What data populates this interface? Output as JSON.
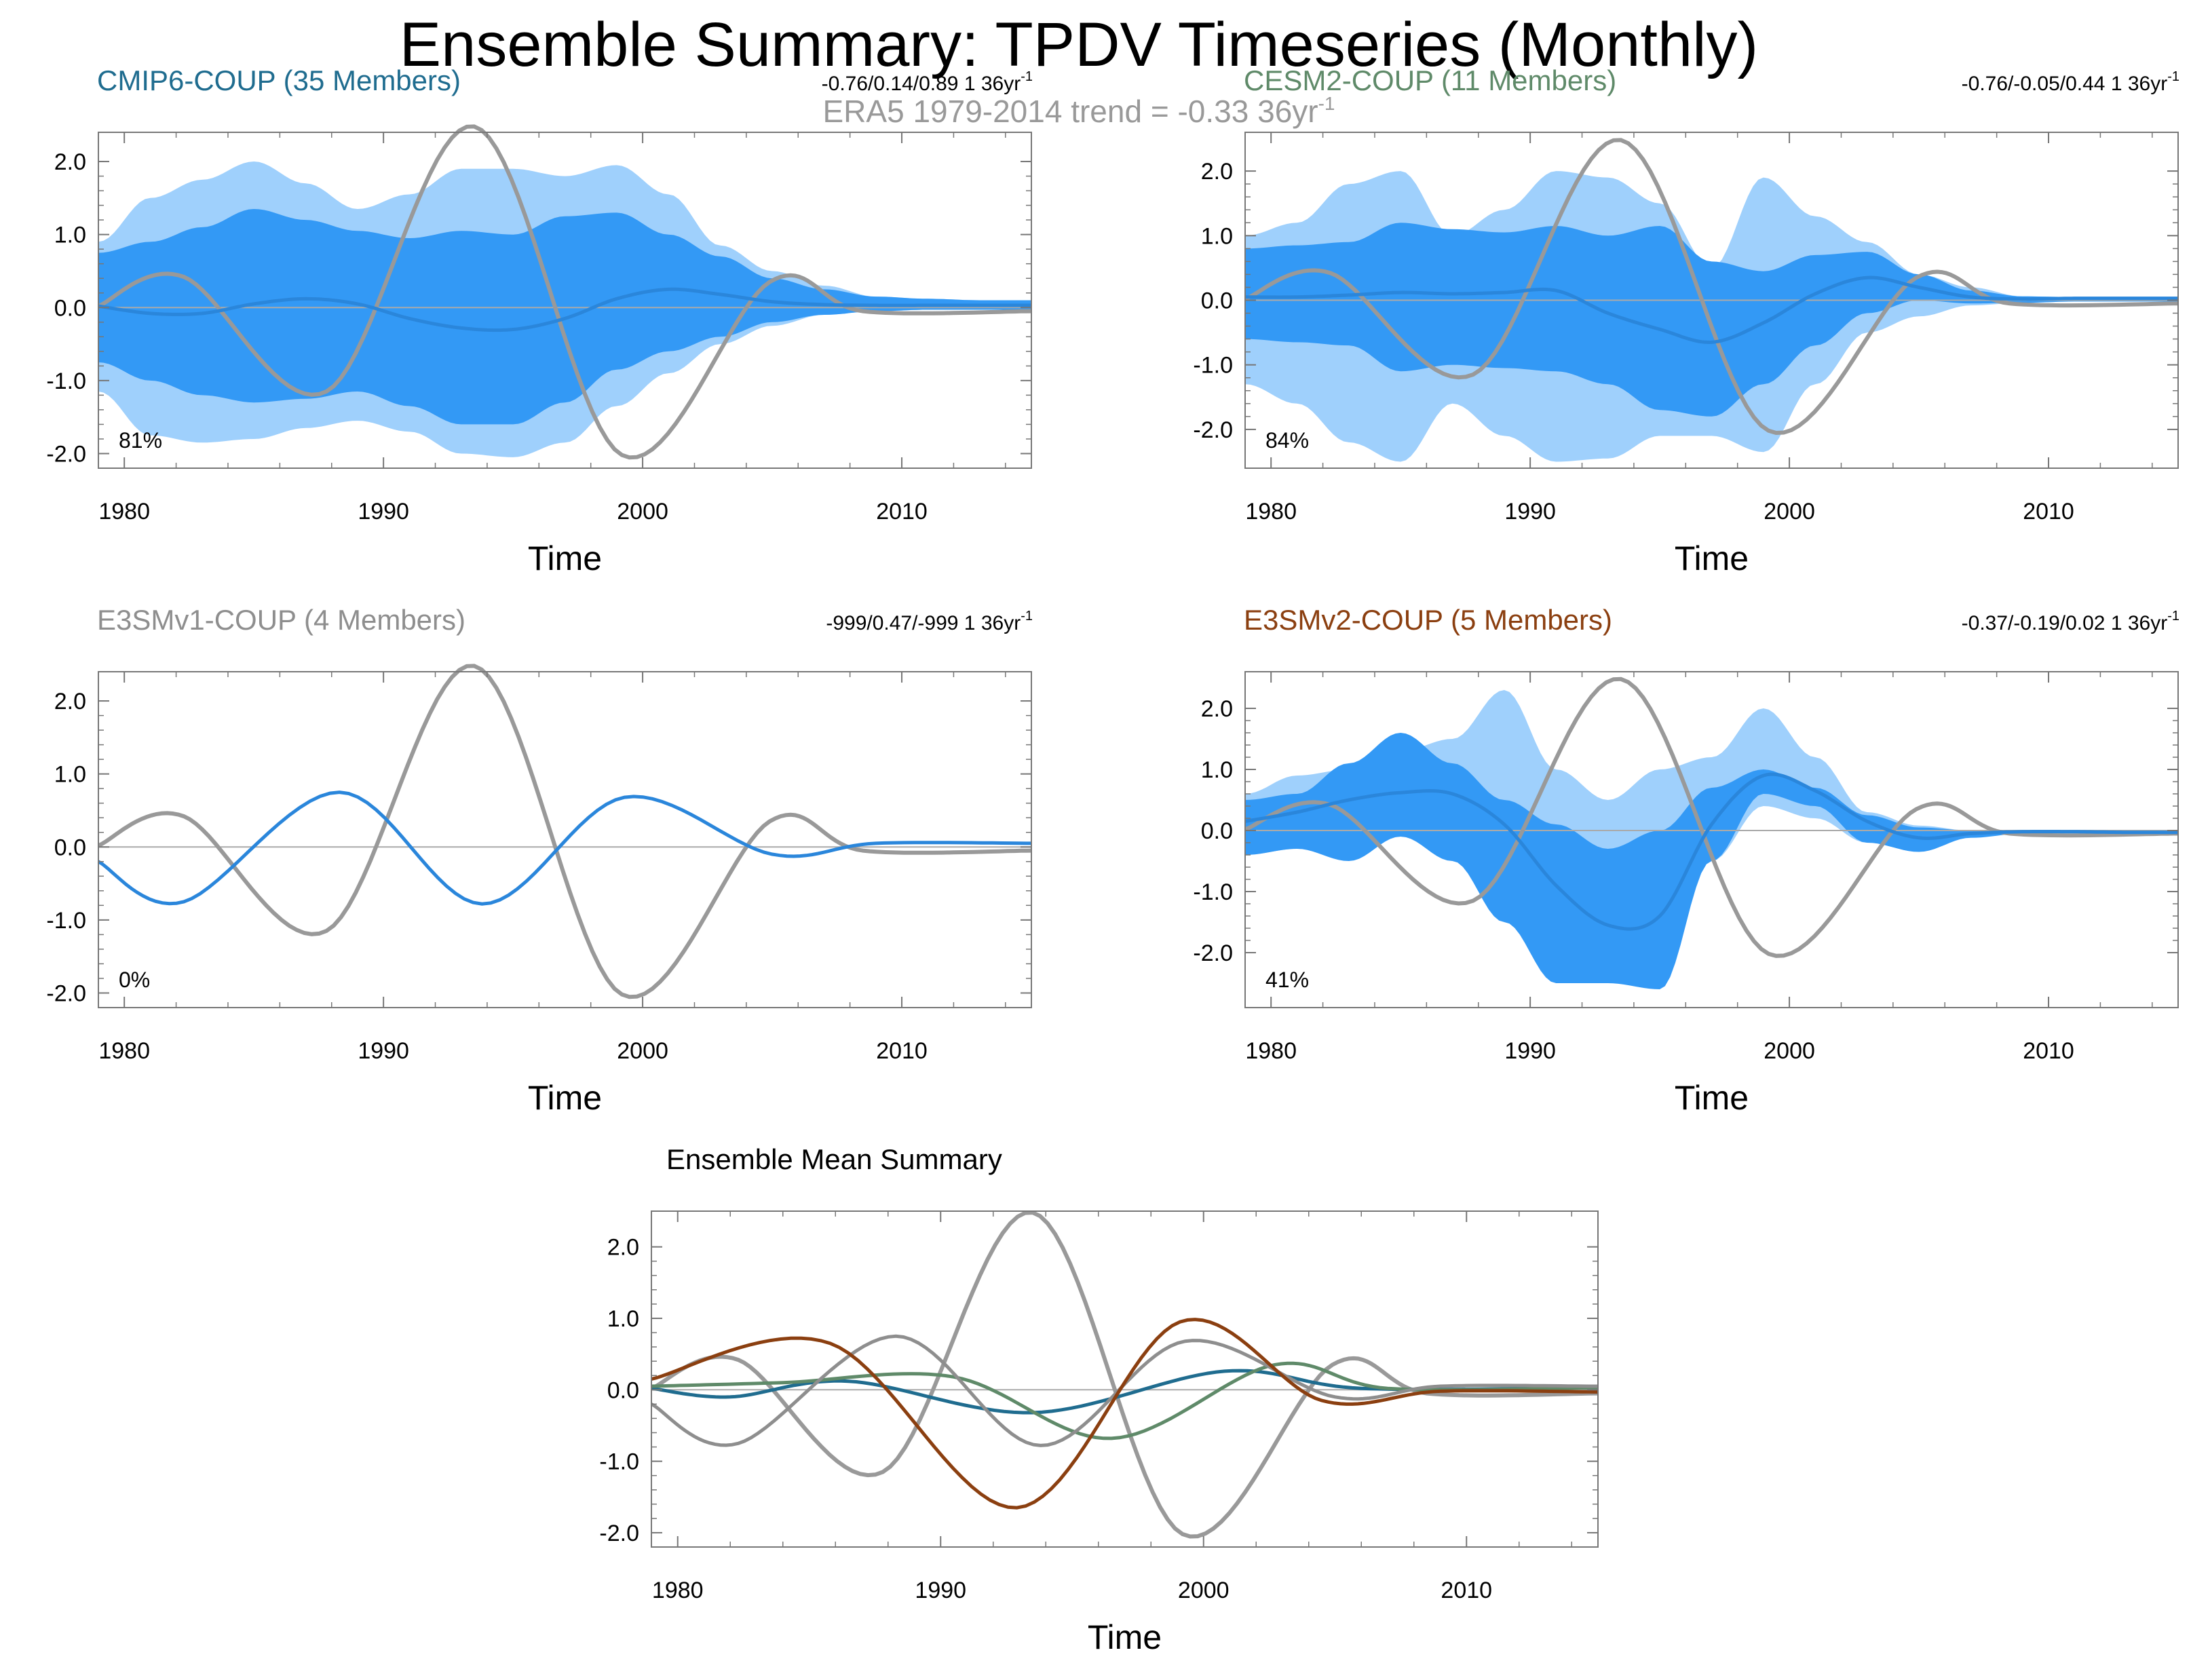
{
  "title": "Ensemble Summary: TPDV Timeseries (Monthly)",
  "era5_note": "ERA5 1979-2014 trend = -0.33 36yr",
  "era5_sup": "-1",
  "colors": {
    "band_outer": "#9fd0fc",
    "band_inner": "#3399f5",
    "member_mean": "#2a86db",
    "obs": "#999999",
    "zero_line": "#aaaaaa",
    "axis": "#777777",
    "cmip6": "#1f6c8f",
    "cesm2": "#5f8a69",
    "e3smv1": "#8e8e8e",
    "e3smv2": "#8b3f10"
  },
  "chart_data": [
    {
      "id": "cmip6",
      "type": "area",
      "title": "CMIP6-COUP (35 Members)",
      "trend_text": "-0.76/0.14/0.89 1 36yr",
      "trend_sup": "-1",
      "percent": "81%",
      "xlabel": "Time",
      "xlim": [
        1979,
        2015
      ],
      "ylim": [
        -2.2,
        2.4
      ],
      "yticks": [
        "2.0",
        "1.0",
        "0.0",
        "-1.0",
        "-2.0"
      ],
      "xticks": [
        "1980",
        "1990",
        "2000",
        "2010"
      ],
      "x": [
        1979,
        1981,
        1983,
        1985,
        1987,
        1989,
        1991,
        1993,
        1995,
        1997,
        1999,
        2001,
        2003,
        2005,
        2007,
        2009,
        2011,
        2013,
        2015
      ],
      "mean": [
        0.02,
        -0.08,
        -0.08,
        0.05,
        0.12,
        0.05,
        -0.15,
        -0.28,
        -0.3,
        -0.15,
        0.12,
        0.25,
        0.18,
        0.08,
        0.04,
        0.03,
        0.03,
        0.03,
        0.03
      ],
      "inner_hi": [
        0.75,
        0.9,
        1.1,
        1.35,
        1.2,
        1.05,
        0.95,
        1.05,
        1.0,
        1.25,
        1.3,
        1.0,
        0.7,
        0.4,
        0.25,
        0.15,
        0.12,
        0.1,
        0.1
      ],
      "inner_lo": [
        -0.75,
        -1.0,
        -1.2,
        -1.3,
        -1.25,
        -1.15,
        -1.35,
        -1.6,
        -1.6,
        -1.3,
        -0.85,
        -0.6,
        -0.4,
        -0.2,
        -0.1,
        -0.05,
        -0.03,
        -0.03,
        -0.03
      ],
      "outer_hi": [
        0.9,
        1.5,
        1.75,
        2.0,
        1.7,
        1.35,
        1.55,
        1.9,
        1.9,
        1.8,
        1.95,
        1.55,
        0.85,
        0.5,
        0.3,
        0.15,
        0.12,
        0.1,
        0.1
      ],
      "outer_lo": [
        -1.15,
        -1.75,
        -1.85,
        -1.8,
        -1.65,
        -1.55,
        -1.7,
        -2.0,
        -2.05,
        -1.85,
        -1.35,
        -0.9,
        -0.5,
        -0.25,
        -0.1,
        -0.05,
        -0.03,
        -0.03,
        -0.03
      ]
    },
    {
      "id": "cesm2",
      "type": "area",
      "title": "CESM2-COUP (11 Members)",
      "trend_text": "-0.76/-0.05/0.44 1 36yr",
      "trend_sup": "-1",
      "percent": "84%",
      "xlabel": "Time",
      "xlim": [
        1979,
        2015
      ],
      "ylim": [
        -2.6,
        2.6
      ],
      "yticks": [
        "2.0",
        "1.0",
        "0.0",
        "-1.0",
        "-2.0"
      ],
      "xticks": [
        "1980",
        "1990",
        "2000",
        "2010"
      ],
      "x": [
        1979,
        1981,
        1983,
        1985,
        1987,
        1989,
        1991,
        1993,
        1995,
        1997,
        1999,
        2001,
        2003,
        2005,
        2007,
        2009,
        2011,
        2013,
        2015
      ],
      "mean": [
        0.05,
        0.05,
        0.08,
        0.12,
        0.1,
        0.12,
        0.15,
        -0.2,
        -0.45,
        -0.65,
        -0.35,
        0.1,
        0.35,
        0.2,
        0.05,
        0.02,
        0.03,
        0.03,
        0.03
      ],
      "inner_hi": [
        0.8,
        0.85,
        0.9,
        1.2,
        1.1,
        1.05,
        1.15,
        1.0,
        1.15,
        0.6,
        0.45,
        0.7,
        0.75,
        0.4,
        0.15,
        0.06,
        0.05,
        0.04,
        0.04
      ],
      "inner_lo": [
        -0.6,
        -0.65,
        -0.7,
        -1.1,
        -1.0,
        -1.05,
        -1.1,
        -1.3,
        -1.7,
        -1.8,
        -1.3,
        -0.7,
        -0.2,
        0.0,
        -0.05,
        -0.04,
        -0.02,
        -0.02,
        -0.02
      ],
      "outer_hi": [
        1.0,
        1.2,
        1.8,
        2.0,
        1.0,
        1.4,
        2.0,
        1.9,
        1.5,
        0.5,
        1.9,
        1.3,
        0.9,
        0.4,
        0.2,
        0.06,
        0.05,
        0.04,
        0.04
      ],
      "outer_lo": [
        -1.3,
        -1.6,
        -2.2,
        -2.5,
        -1.6,
        -2.1,
        -2.5,
        -2.45,
        -2.1,
        -2.1,
        -2.35,
        -1.3,
        -0.5,
        -0.25,
        -0.08,
        -0.04,
        -0.02,
        -0.02,
        -0.02
      ]
    },
    {
      "id": "e3smv1",
      "type": "line",
      "title": "E3SMv1-COUP (4 Members)",
      "trend_text": "-999/0.47/-999 1 36yr",
      "trend_sup": "-1",
      "percent": "0%",
      "xlabel": "Time",
      "xlim": [
        1979,
        2015
      ],
      "ylim": [
        -2.2,
        2.4
      ],
      "yticks": [
        "2.0",
        "1.0",
        "0.0",
        "-1.0",
        "-2.0"
      ],
      "xticks": [
        "1980",
        "1990",
        "2000",
        "2010"
      ],
      "x": [
        1979,
        1982.3,
        1988.3,
        1993.8,
        1999.3,
        2005,
        2009,
        2015
      ],
      "mean": [
        -0.2,
        -0.75,
        0.75,
        -0.78,
        0.68,
        -0.1,
        0.05,
        0.05
      ]
    },
    {
      "id": "e3smv2",
      "type": "area",
      "title": "E3SMv2-COUP (5 Members)",
      "trend_text": "-0.37/-0.19/0.02 1 36yr",
      "trend_sup": "-1",
      "percent": "41%",
      "xlabel": "Time",
      "xlim": [
        1979,
        2015
      ],
      "ylim": [
        -2.9,
        2.6
      ],
      "yticks": [
        "2.0",
        "1.0",
        "0.0",
        "-1.0",
        "-2.0"
      ],
      "xticks": [
        "1980",
        "1990",
        "2000",
        "2010"
      ],
      "x": [
        1979,
        1981,
        1983,
        1985,
        1987,
        1989,
        1991,
        1993,
        1995,
        1997,
        1999,
        2001,
        2003,
        2005,
        2007,
        2009,
        2011,
        2013,
        2015
      ],
      "mean": [
        0.15,
        0.3,
        0.5,
        0.62,
        0.6,
        0.1,
        -0.9,
        -1.55,
        -1.4,
        0.1,
        0.9,
        0.65,
        0.15,
        -0.12,
        -0.05,
        -0.02,
        -0.02,
        -0.03,
        -0.03
      ],
      "inner_hi": [
        0.5,
        0.6,
        1.1,
        1.6,
        1.1,
        0.5,
        0.1,
        -0.3,
        0.0,
        0.7,
        1.0,
        0.7,
        0.25,
        0.05,
        0.0,
        -0.01,
        -0.01,
        -0.02,
        -0.02
      ],
      "inner_lo": [
        -0.4,
        -0.3,
        -0.5,
        -0.1,
        -0.5,
        -1.5,
        -2.5,
        -2.5,
        -2.6,
        -0.5,
        0.6,
        0.4,
        -0.2,
        -0.35,
        -0.12,
        -0.05,
        -0.04,
        -0.04,
        -0.04
      ],
      "outer_hi": [
        0.6,
        0.9,
        1.0,
        1.3,
        1.5,
        2.3,
        1.0,
        0.5,
        1.0,
        1.2,
        2.0,
        1.2,
        0.3,
        0.08,
        0.0,
        -0.01,
        -0.01,
        -0.02,
        -0.02
      ],
      "outer_lo": [
        -0.4,
        -0.3,
        -0.4,
        -0.1,
        -0.4,
        -0.7,
        -1.9,
        -2.5,
        -1.9,
        -0.5,
        0.4,
        0.2,
        -0.2,
        -0.3,
        -0.1,
        -0.05,
        -0.04,
        -0.04,
        -0.04
      ]
    },
    {
      "id": "mean_summary",
      "type": "line",
      "title": "Ensemble Mean Summary",
      "xlabel": "Time",
      "xlim": [
        1979,
        2015
      ],
      "ylim": [
        -2.2,
        2.5
      ],
      "yticks": [
        "2.0",
        "1.0",
        "0.0",
        "-1.0",
        "-2.0"
      ],
      "xticks": [
        "1980",
        "1990",
        "2000",
        "2010"
      ],
      "series": [
        {
          "name": "CMIP6-COUP",
          "color_key": "cmip6",
          "x": [
            1979,
            1982,
            1986.5,
            1993.5,
            2000.8,
            2006,
            2015
          ],
          "y": [
            0.02,
            -0.1,
            0.12,
            -0.32,
            0.26,
            0.02,
            0.03
          ]
        },
        {
          "name": "CESM2-COUP",
          "color_key": "cesm2",
          "x": [
            1979,
            1984,
            1990.5,
            1996.5,
            2002.7,
            2007,
            2015
          ],
          "y": [
            0.05,
            0.1,
            0.18,
            -0.68,
            0.35,
            0.02,
            0.03
          ]
        },
        {
          "name": "E3SMv1-COUP",
          "color_key": "e3smv1",
          "x": [
            1979,
            1982.3,
            1988.3,
            1993.8,
            1999.3,
            2005,
            2009,
            2015
          ],
          "y": [
            -0.2,
            -0.75,
            0.75,
            -0.78,
            0.68,
            -0.1,
            0.05,
            0.05
          ]
        },
        {
          "name": "E3SMv2-COUP",
          "color_key": "e3smv2",
          "x": [
            1979,
            1985.8,
            1992.9,
            1999.1,
            2004.5,
            2009,
            2015
          ],
          "y": [
            0.15,
            0.65,
            -1.65,
            0.95,
            -0.15,
            -0.02,
            -0.03
          ]
        }
      ]
    }
  ],
  "obs_series": {
    "name": "ERA5",
    "x": [
      1979,
      1982.3,
      1987.8,
      1993.5,
      1999.2,
      2004.9,
      2008.5,
      2015
    ],
    "y": [
      0.02,
      0.42,
      -1.15,
      2.48,
      -2.02,
      0.35,
      -0.05,
      -0.05
    ]
  }
}
